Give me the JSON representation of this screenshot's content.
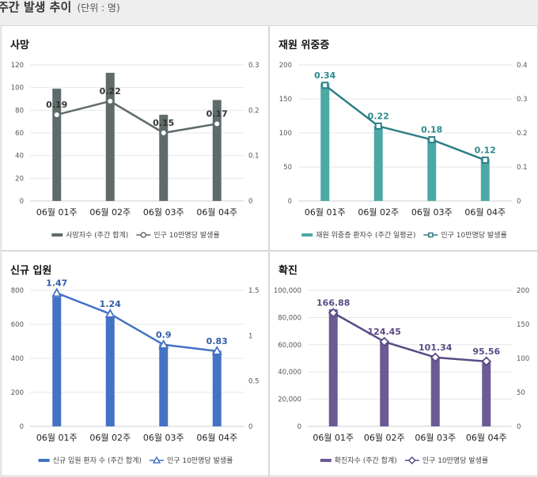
{
  "header": {
    "title": "주간 발생 추이",
    "unit": "(단위 : 명)"
  },
  "chart_data": [
    {
      "type": "bar",
      "title": "사망",
      "categories": [
        "06월 01주",
        "06월 02주",
        "06월 03주",
        "06월 04주"
      ],
      "ylim": [
        0,
        120
      ],
      "y_ticks": [
        "0",
        "20",
        "40",
        "60",
        "80",
        "100",
        "120"
      ],
      "y2lim": [
        0,
        0.3
      ],
      "y2_ticks": [
        "0",
        "0.1",
        "0.2",
        "0.3"
      ],
      "grid": true,
      "legend": "bottom",
      "marker": "circle",
      "bar_color": "#5f6b6b",
      "line_color": "#5f6b6b",
      "label_color": "#333333",
      "series": [
        {
          "name": "사망자수 (주간 합계)",
          "kind": "bar",
          "axis": "left",
          "values": [
            99,
            113,
            76,
            89
          ]
        },
        {
          "name": "인구 10만명당 발생률",
          "kind": "line",
          "axis": "right",
          "values": [
            0.19,
            0.22,
            0.15,
            0.17
          ],
          "labels": [
            "0.19",
            "0.22",
            "0.15",
            "0.17"
          ]
        }
      ]
    },
    {
      "type": "bar",
      "title": "재원 위중증",
      "categories": [
        "06월 01주",
        "06월 02주",
        "06월 03주",
        "06월 04주"
      ],
      "ylim": [
        0,
        200
      ],
      "y_ticks": [
        "0",
        "50",
        "100",
        "150",
        "200"
      ],
      "y2lim": [
        0,
        0.4
      ],
      "y2_ticks": [
        "0",
        "0.1",
        "0.2",
        "0.3",
        "0.4"
      ],
      "grid": true,
      "legend": "bottom",
      "marker": "square",
      "bar_color": "#4aa9a6",
      "line_color": "#2f7f86",
      "label_color": "#2c8a8a",
      "series": [
        {
          "name": "재원 위중증 환자수 (주간 일평균)",
          "kind": "bar",
          "axis": "left",
          "values": [
            173,
            110,
            90,
            62
          ]
        },
        {
          "name": "인구 10만명당 발생률",
          "kind": "line",
          "axis": "right",
          "values": [
            0.34,
            0.22,
            0.18,
            0.12
          ],
          "labels": [
            "0.34",
            "0.22",
            "0.18",
            "0.12"
          ]
        }
      ]
    },
    {
      "type": "bar",
      "title": "신규 입원",
      "categories": [
        "06월 01주",
        "06월 02주",
        "06월 03주",
        "06월 04주"
      ],
      "ylim": [
        0,
        800
      ],
      "y_ticks": [
        "0",
        "200",
        "400",
        "600",
        "800"
      ],
      "y2lim": [
        0,
        1.5
      ],
      "y2_ticks": [
        "0",
        "0.5",
        "1",
        "1.5"
      ],
      "grid": true,
      "legend": "bottom",
      "marker": "triangle",
      "bar_color": "#4472c4",
      "line_color": "#4472c4",
      "label_color": "#2f5da8",
      "series": [
        {
          "name": "신규 입원 환자 수 (주간 합계)",
          "kind": "bar",
          "axis": "left",
          "values": [
            760,
            640,
            482,
            445
          ]
        },
        {
          "name": "인구 10만명당 발생률",
          "kind": "line",
          "axis": "right",
          "values": [
            1.47,
            1.24,
            0.9,
            0.83
          ],
          "labels": [
            "1.47",
            "1.24",
            "0.9",
            "0.83"
          ]
        }
      ]
    },
    {
      "type": "bar",
      "title": "확진",
      "categories": [
        "06월 01주",
        "06월 02주",
        "06월 03주",
        "06월 04주"
      ],
      "ylim": [
        0,
        100000
      ],
      "y_ticks": [
        "0",
        "20,000",
        "40,000",
        "60,000",
        "80,000",
        "100,000"
      ],
      "y2lim": [
        0,
        200
      ],
      "y2_ticks": [
        "0",
        "50",
        "100",
        "150",
        "200"
      ],
      "grid": true,
      "legend": "bottom",
      "marker": "diamond",
      "bar_color": "#6c5a94",
      "line_color": "#5a4a86",
      "label_color": "#5a4a86",
      "series": [
        {
          "name": "확진자수 (주간 합계)",
          "kind": "bar",
          "axis": "left",
          "values": [
            86000,
            63000,
            51000,
            48000
          ]
        },
        {
          "name": "인구 10만명당 발생률",
          "kind": "line",
          "axis": "right",
          "values": [
            166.88,
            124.45,
            101.34,
            95.56
          ],
          "labels": [
            "166.88",
            "124.45",
            "101.34",
            "95.56"
          ]
        }
      ]
    }
  ]
}
